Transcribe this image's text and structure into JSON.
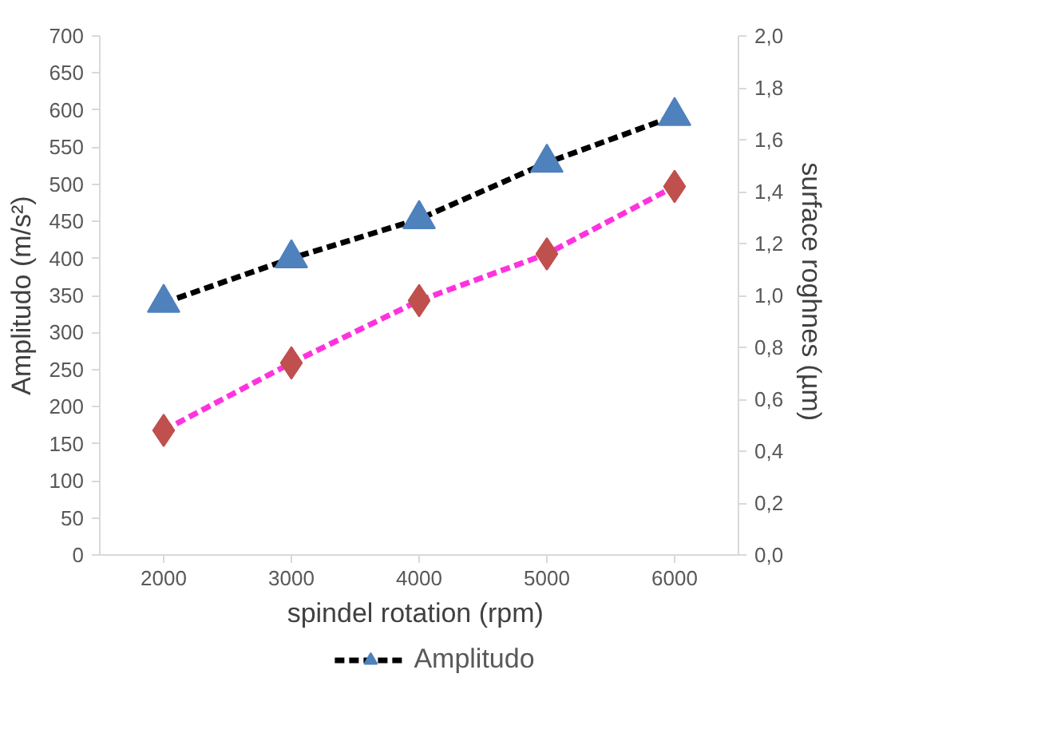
{
  "chart_data": {
    "type": "line",
    "xlabel": "spindel rotation  (rpm)",
    "ylabel": "Amplitudo (m/s²)",
    "y2label": "surface roghnes  (µm)",
    "categories": [
      "2000",
      "3000",
      "4000",
      "5000",
      "6000"
    ],
    "series": [
      {
        "name": "Amplitudo",
        "color": "#000000",
        "marker": "triangle",
        "values": [
          340,
          400,
          453,
          529,
          592
        ]
      },
      {
        "color": "#ff33dd",
        "marker": "diamond",
        "axis": "y2",
        "values": [
          0.48,
          0.74,
          0.98,
          1.16,
          1.42
        ]
      }
    ],
    "ylim": [
      0,
      700
    ],
    "yticks": [
      0,
      50,
      100,
      150,
      200,
      250,
      300,
      350,
      400,
      450,
      500,
      550,
      600,
      650,
      700
    ],
    "y2lim": [
      0,
      2.0
    ],
    "y2ticks": [
      {
        "value": 0,
        "label": "0,0"
      },
      {
        "value": 0.2,
        "label": "0,2"
      },
      {
        "value": 0.4,
        "label": "0,4"
      },
      {
        "value": 0.6,
        "label": "0,6"
      },
      {
        "value": 0.8,
        "label": "0,8"
      },
      {
        "value": 1.0,
        "label": "1,0"
      },
      {
        "value": 1.2,
        "label": "1,2"
      },
      {
        "value": 1.4,
        "label": "1,4"
      },
      {
        "value": 1.6,
        "label": "1,6"
      },
      {
        "value": 1.8,
        "label": "1,8"
      },
      {
        "value": 2.0,
        "label": "2,0"
      }
    ],
    "grid": false,
    "legend": "bottom",
    "line_style": "dashed"
  }
}
